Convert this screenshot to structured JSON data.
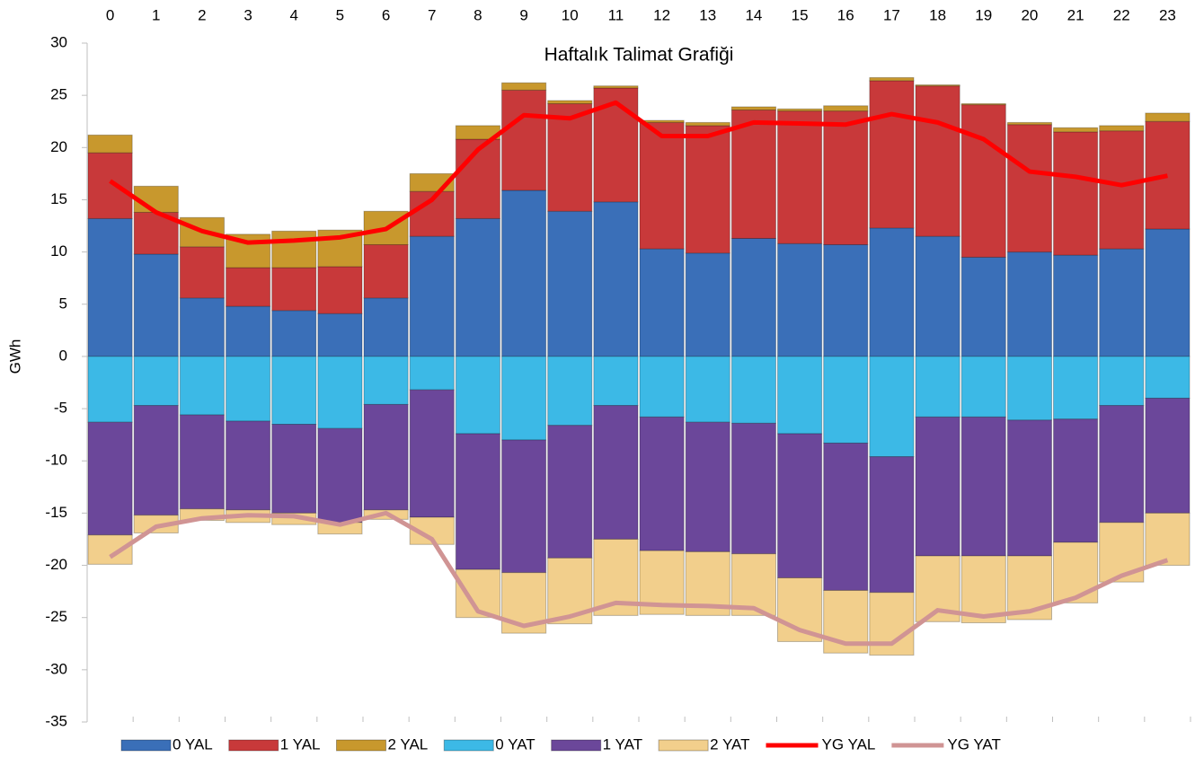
{
  "chart_data": {
    "type": "bar",
    "stacked": true,
    "title": "Haftalık Talimat Grafiği",
    "y_label": "GWh",
    "categories": [
      "0",
      "1",
      "2",
      "3",
      "4",
      "5",
      "6",
      "7",
      "8",
      "9",
      "10",
      "11",
      "12",
      "13",
      "14",
      "15",
      "16",
      "17",
      "18",
      "19",
      "20",
      "21",
      "22",
      "23"
    ],
    "ylim": [
      -35,
      30
    ],
    "yticks": [
      30,
      25,
      20,
      15,
      10,
      5,
      0,
      -5,
      -10,
      -15,
      -20,
      -25,
      -30,
      -35
    ],
    "grid": false,
    "legend": "bottom",
    "series": [
      {
        "name": "0 YAL",
        "type": "bar",
        "color": "#3a6fb8",
        "values": [
          13.2,
          9.8,
          5.6,
          4.8,
          4.4,
          4.1,
          5.6,
          11.5,
          13.2,
          15.9,
          13.9,
          14.8,
          10.3,
          9.9,
          11.3,
          10.8,
          10.7,
          12.3,
          11.5,
          9.5,
          10.0,
          9.7,
          10.3,
          12.2
        ]
      },
      {
        "name": "1 YAL",
        "type": "bar",
        "color": "#c8393a",
        "values": [
          6.3,
          4.0,
          4.9,
          3.7,
          4.1,
          4.5,
          5.1,
          4.3,
          7.6,
          9.6,
          10.3,
          10.9,
          12.1,
          12.2,
          12.3,
          12.7,
          12.8,
          14.1,
          14.4,
          14.6,
          12.2,
          11.8,
          11.3,
          10.3
        ]
      },
      {
        "name": "2 YAL",
        "type": "bar",
        "color": "#c8982d",
        "values": [
          1.7,
          2.5,
          2.8,
          3.2,
          3.5,
          3.5,
          3.2,
          1.7,
          1.3,
          0.7,
          0.3,
          0.2,
          0.2,
          0.3,
          0.3,
          0.2,
          0.5,
          0.3,
          0.1,
          0.1,
          0.2,
          0.4,
          0.5,
          0.8
        ]
      },
      {
        "name": "0 YAT",
        "type": "bar",
        "color": "#3cb9e6",
        "values": [
          -6.3,
          -4.7,
          -5.6,
          -6.2,
          -6.5,
          -6.9,
          -4.6,
          -3.2,
          -7.4,
          -8.0,
          -6.6,
          -4.7,
          -5.8,
          -6.3,
          -6.4,
          -7.4,
          -8.3,
          -9.6,
          -5.8,
          -5.8,
          -6.1,
          -6.0,
          -4.7,
          -4.0
        ]
      },
      {
        "name": "1 YAT",
        "type": "bar",
        "color": "#6b479a",
        "values": [
          -10.8,
          -10.5,
          -9.0,
          -8.5,
          -8.5,
          -9.0,
          -10.1,
          -12.2,
          -13.0,
          -12.7,
          -12.7,
          -12.8,
          -12.8,
          -12.4,
          -12.5,
          -13.8,
          -14.1,
          -13.0,
          -13.3,
          -13.3,
          -13.0,
          -11.8,
          -11.2,
          -11.0
        ]
      },
      {
        "name": "2 YAT",
        "type": "bar",
        "color": "#f2cf8c",
        "values": [
          -2.8,
          -1.7,
          -1.1,
          -1.2,
          -1.1,
          -1.1,
          -0.9,
          -2.6,
          -4.6,
          -5.8,
          -6.3,
          -7.3,
          -6.1,
          -6.1,
          -5.9,
          -6.1,
          -6.0,
          -6.0,
          -6.3,
          -6.4,
          -6.1,
          -5.8,
          -5.7,
          -5.0
        ]
      },
      {
        "name": "YG YAL",
        "type": "line",
        "color": "#ff0000",
        "values": [
          16.8,
          13.8,
          12.0,
          10.9,
          11.1,
          11.4,
          12.2,
          15.0,
          19.8,
          23.1,
          22.8,
          24.3,
          21.1,
          21.1,
          22.4,
          22.3,
          22.2,
          23.2,
          22.4,
          20.8,
          17.7,
          17.2,
          16.4,
          17.3
        ]
      },
      {
        "name": "YG YAT",
        "type": "line",
        "color": "#d09494",
        "values": [
          -19.2,
          -16.3,
          -15.5,
          -15.2,
          -15.3,
          -16.1,
          -15.0,
          -17.5,
          -24.4,
          -25.8,
          -24.9,
          -23.6,
          -23.8,
          -23.9,
          -24.1,
          -26.2,
          -27.5,
          -27.5,
          -24.3,
          -24.9,
          -24.4,
          -23.1,
          -21.0,
          -19.5
        ]
      }
    ]
  }
}
